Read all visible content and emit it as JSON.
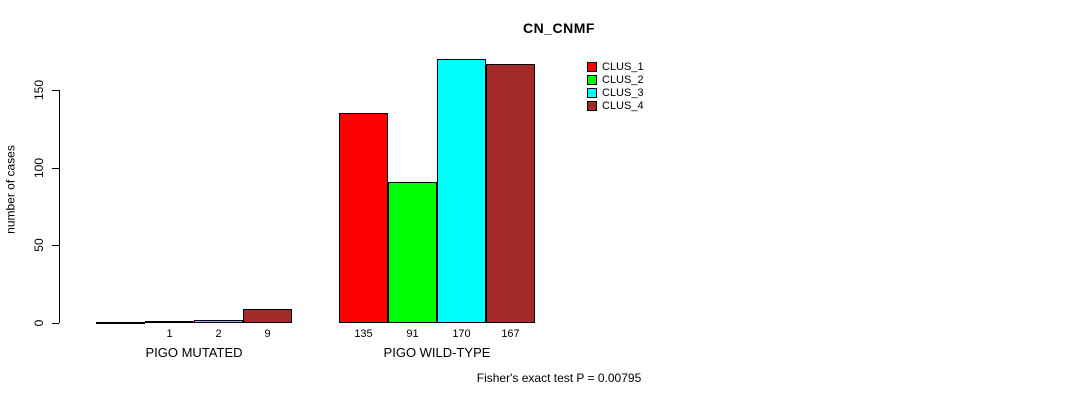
{
  "chart_data": {
    "type": "bar",
    "title": "CN_CNMF",
    "ylabel": "number of cases",
    "yticks": [
      0,
      50,
      100,
      150
    ],
    "ylim": [
      0,
      175
    ],
    "grid": false,
    "legend_position": "top-right",
    "categories": [
      "PIGO MUTATED",
      "PIGO WILD-TYPE"
    ],
    "series": [
      {
        "name": "CLUS_1",
        "color": "#FF0000",
        "values": [
          0,
          135
        ]
      },
      {
        "name": "CLUS_2",
        "color": "#00FF00",
        "values": [
          1,
          91
        ]
      },
      {
        "name": "CLUS_3",
        "color": "#00FFFF",
        "values": [
          2,
          170
        ]
      },
      {
        "name": "CLUS_4",
        "color": "#A52A2A",
        "values": [
          9,
          167
        ]
      }
    ],
    "bar_value_labels": [
      [
        "",
        "1",
        "2",
        "9"
      ],
      [
        "135",
        "91",
        "170",
        "167"
      ]
    ],
    "annotation": "Fisher's exact test P = 0.00795"
  },
  "colors": {
    "background": "#FFFFFF",
    "axis": "#000000",
    "bar_border": "#000000"
  }
}
